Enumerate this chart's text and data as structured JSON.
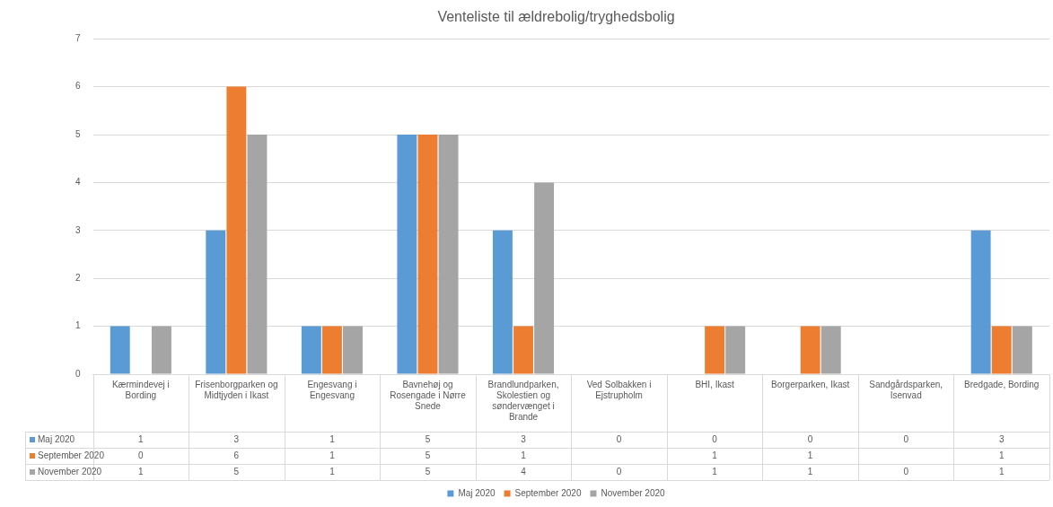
{
  "chart_data": {
    "type": "bar",
    "title": "Venteliste til ældrebolig/tryghedsbolig",
    "categories": [
      "Kærmindevej i Bording",
      "Frisenborgparken og Midtjyden i Ikast",
      "Engesvang i Engesvang",
      "Bavnehøj og Rosengade i Nørre Snede",
      "Brandlundparken, Skolestien og søndervænget i Brande",
      "Ved Solbakken i Ejstrupholm",
      "BHI, Ikast",
      "Borgerparken, Ikast",
      "Sandgårdsparken, Isenvad",
      "Bredgade, Bording"
    ],
    "series": [
      {
        "name": "Maj 2020",
        "color": "#5b9bd5",
        "values": [
          1,
          3,
          1,
          5,
          3,
          0,
          0,
          0,
          0,
          3
        ]
      },
      {
        "name": "September 2020",
        "color": "#ed7d31",
        "values": [
          0,
          6,
          1,
          5,
          1,
          null,
          1,
          1,
          null,
          1
        ]
      },
      {
        "name": "November 2020",
        "color": "#a5a5a5",
        "values": [
          1,
          5,
          1,
          5,
          4,
          0,
          1,
          1,
          0,
          1
        ]
      }
    ],
    "ylim": [
      0,
      7
    ],
    "yticks": [
      0,
      1,
      2,
      3,
      4,
      5,
      6,
      7
    ],
    "grid": "y",
    "legend": "bottom",
    "data_labels": true
  }
}
